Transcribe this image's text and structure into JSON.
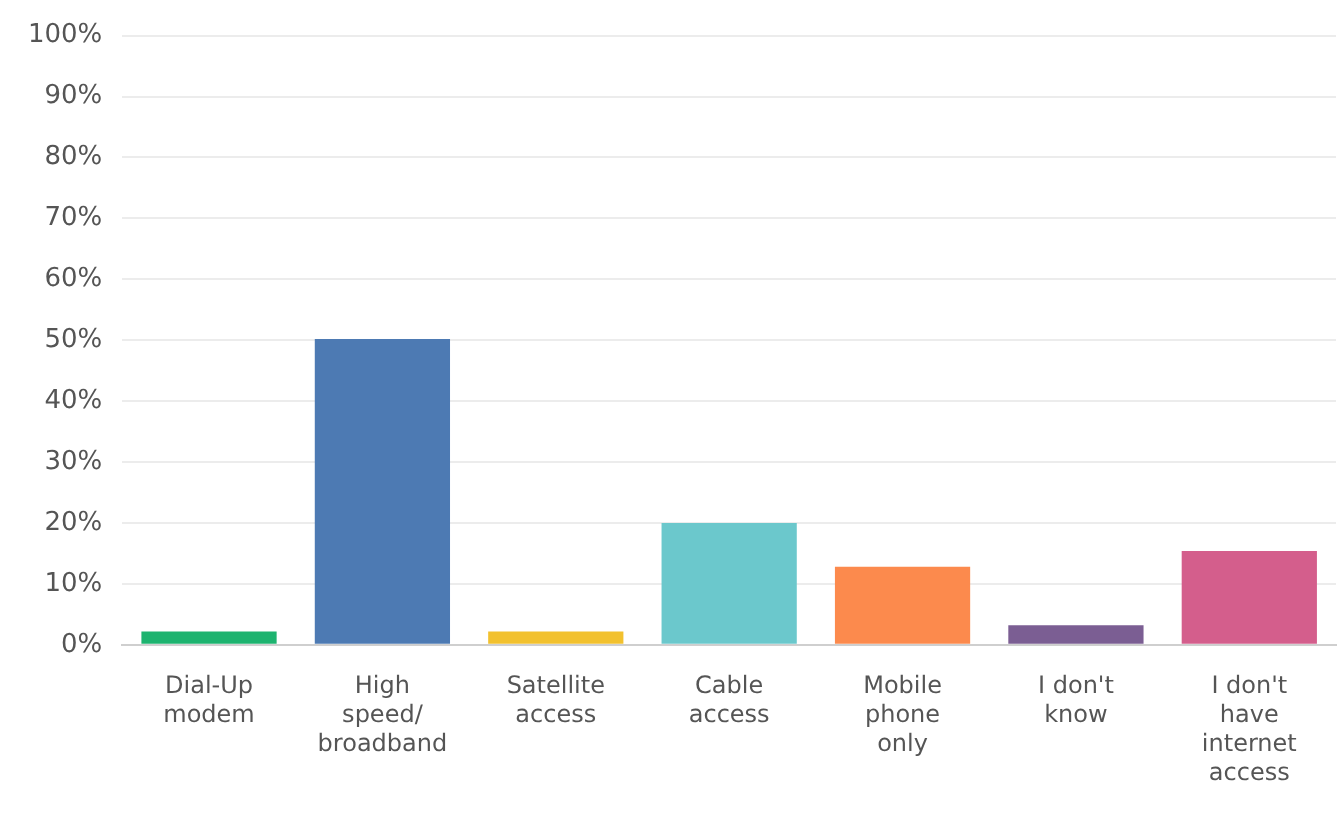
{
  "chart_data": {
    "type": "bar",
    "categories": [
      "Dial-Up modem",
      "High speed/broadband",
      "Satellite access",
      "Cable access",
      "Mobile phone only",
      "I don't know",
      "I don't have internet access"
    ],
    "values": [
      2.2,
      50.2,
      2.2,
      20,
      12.8,
      3.2,
      15.4
    ],
    "colors": [
      "#1db36f",
      "#4d7ab3",
      "#f2c12e",
      "#6bc8cc",
      "#fc8a4d",
      "#7b5e93",
      "#d45e8c"
    ],
    "ylim": [
      0,
      100
    ],
    "yticks": [
      {
        "value": 0,
        "label": "0%"
      },
      {
        "value": 10,
        "label": "10%"
      },
      {
        "value": 20,
        "label": "20%"
      },
      {
        "value": 30,
        "label": "30%"
      },
      {
        "value": 40,
        "label": "40%"
      },
      {
        "value": 50,
        "label": "50%"
      },
      {
        "value": 60,
        "label": "60%"
      },
      {
        "value": 70,
        "label": "70%"
      },
      {
        "value": 80,
        "label": "80%"
      },
      {
        "value": 90,
        "label": "90%"
      },
      {
        "value": 100,
        "label": "100%"
      }
    ],
    "grid": "y"
  }
}
